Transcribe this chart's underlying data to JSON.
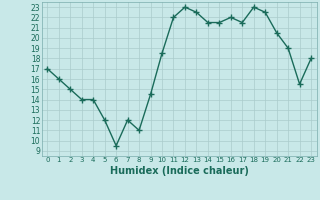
{
  "x": [
    0,
    1,
    2,
    3,
    4,
    5,
    6,
    7,
    8,
    9,
    10,
    11,
    12,
    13,
    14,
    15,
    16,
    17,
    18,
    19,
    20,
    21,
    22,
    23
  ],
  "y": [
    17,
    16,
    15,
    14,
    14,
    12,
    9.5,
    12,
    11,
    14.5,
    18.5,
    22,
    23,
    22.5,
    21.5,
    21.5,
    22,
    21.5,
    23,
    22.5,
    20.5,
    19,
    15.5,
    18
  ],
  "xlabel": "Humidex (Indice chaleur)",
  "xlim": [
    -0.5,
    23.5
  ],
  "ylim": [
    8.5,
    23.5
  ],
  "yticks": [
    9,
    10,
    11,
    12,
    13,
    14,
    15,
    16,
    17,
    18,
    19,
    20,
    21,
    22,
    23
  ],
  "xticks": [
    0,
    1,
    2,
    3,
    4,
    5,
    6,
    7,
    8,
    9,
    10,
    11,
    12,
    13,
    14,
    15,
    16,
    17,
    18,
    19,
    20,
    21,
    22,
    23
  ],
  "line_color": "#1a6b5a",
  "bg_color": "#c8e8e8",
  "grid_color": "#aacccc",
  "marker": "+",
  "marker_size": 4,
  "line_width": 1.0
}
